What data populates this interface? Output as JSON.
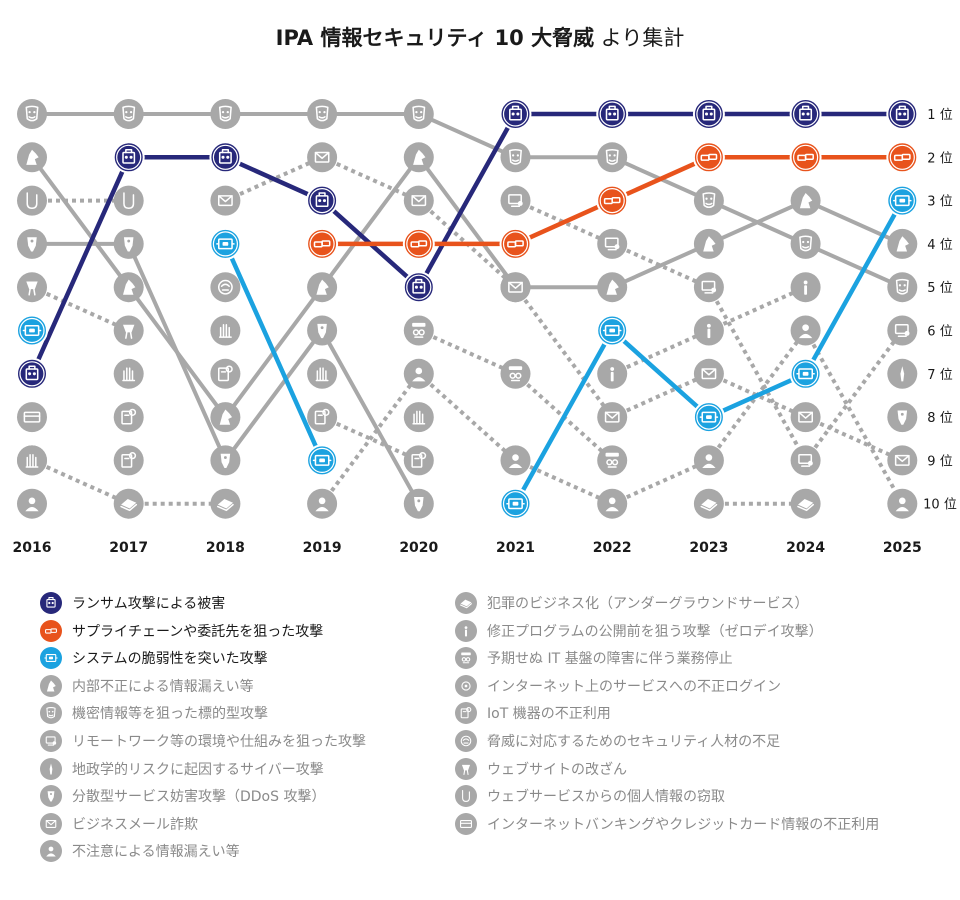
{
  "title": {
    "bold": "IPA 情報セキュリティ 10 大脅威",
    "normal": "より集計"
  },
  "chart_data": {
    "type": "bump",
    "title": "IPA 情報セキュリティ 10 大脅威 より集計",
    "x": [
      "2016",
      "2017",
      "2018",
      "2019",
      "2020",
      "2021",
      "2022",
      "2023",
      "2024",
      "2025"
    ],
    "rank_labels": [
      "1 位",
      "2 位",
      "3 位",
      "4 位",
      "5 位",
      "6 位",
      "7 位",
      "8 位",
      "9 位",
      "10 位"
    ],
    "series": [
      {
        "name": "ランサム攻撃による被害",
        "key": "ransom",
        "ranks": [
          7,
          2,
          2,
          3,
          5,
          1,
          1,
          1,
          1,
          1
        ],
        "color": "#27287a",
        "style": "highlight",
        "icon": "skull-lock-icon",
        "legend_col": 0
      },
      {
        "name": "サプライチェーンや委託先を狙った攻撃",
        "key": "supply",
        "ranks": [
          null,
          null,
          null,
          4,
          4,
          4,
          3,
          2,
          2,
          2
        ],
        "color": "#e8531c",
        "style": "highlight",
        "icon": "chain-link-icon",
        "legend_col": 0
      },
      {
        "name": "システムの脆弱性を突いた攻撃",
        "key": "vuln",
        "ranks": [
          6,
          null,
          4,
          9,
          null,
          10,
          6,
          8,
          7,
          3
        ],
        "color": "#1ba2e0",
        "style": "highlight",
        "icon": "bug-icon",
        "legend_col": 0
      },
      {
        "name": "内部不正による情報漏えい等",
        "key": "insider",
        "ranks": [
          2,
          5,
          8,
          5,
          2,
          5,
          5,
          4,
          3,
          4
        ],
        "color": "#a8a8a8",
        "style": "solid",
        "icon": "insider-icon",
        "legend_col": 0
      },
      {
        "name": "機密情報等を狙った標的型攻撃",
        "key": "apt",
        "ranks": [
          1,
          1,
          1,
          1,
          1,
          2,
          2,
          3,
          4,
          5
        ],
        "color": "#a8a8a8",
        "style": "solid",
        "icon": "mask-icon",
        "legend_col": 0
      },
      {
        "name": "リモートワーク等の環境や仕組みを狙った攻撃",
        "key": "remote",
        "ranks": [
          null,
          null,
          null,
          null,
          null,
          3,
          4,
          5,
          9,
          6
        ],
        "color": "#a8a8a8",
        "style": "dotted",
        "icon": "remote-work-icon",
        "legend_col": 0
      },
      {
        "name": "地政学的リスクに起因するサイバー攻撃",
        "key": "geo",
        "ranks": [
          null,
          null,
          null,
          null,
          null,
          null,
          null,
          null,
          null,
          7
        ],
        "color": "#a8a8a8",
        "style": "dotted",
        "icon": "geo-risk-icon",
        "legend_col": 0
      },
      {
        "name": "分散型サービス妨害攻撃（DDoS 攻撃）",
        "key": "ddos",
        "ranks": [
          4,
          4,
          9,
          6,
          10,
          null,
          null,
          null,
          null,
          8
        ],
        "color": "#a8a8a8",
        "style": "solid",
        "icon": "ddos-icon",
        "legend_col": 0
      },
      {
        "name": "ビジネスメール詐欺",
        "key": "bec",
        "ranks": [
          null,
          null,
          3,
          2,
          3,
          5,
          8,
          7,
          8,
          9
        ],
        "color": "#a8a8a8",
        "style": "dotted",
        "icon": "mail-icon",
        "legend_col": 0
      },
      {
        "name": "不注意による情報漏えい等",
        "key": "careless",
        "ranks": [
          10,
          null,
          null,
          10,
          7,
          9,
          10,
          9,
          6,
          10
        ],
        "color": "#a8a8a8",
        "style": "dotted",
        "icon": "person-icon",
        "legend_col": 0
      },
      {
        "name": "犯罪のビジネス化（アンダーグラウンドサービス）",
        "key": "crime",
        "ranks": [
          9,
          10,
          10,
          null,
          null,
          null,
          null,
          10,
          10,
          null
        ],
        "color": "#a8a8a8",
        "style": "dotted",
        "icon": "cash-icon",
        "legend_col": 1
      },
      {
        "name": "修正プログラムの公開前を狙う攻撃（ゼロデイ攻撃）",
        "key": "zeroday",
        "ranks": [
          null,
          null,
          null,
          null,
          null,
          null,
          7,
          6,
          5,
          null
        ],
        "color": "#a8a8a8",
        "style": "dotted",
        "icon": "zero-day-icon",
        "legend_col": 1
      },
      {
        "name": "予期せぬ IT 基盤の障害に伴う業務停止",
        "key": "outage",
        "ranks": [
          null,
          null,
          null,
          null,
          6,
          7,
          9,
          null,
          null,
          null
        ],
        "color": "#a8a8a8",
        "style": "dotted",
        "icon": "outage-icon",
        "legend_col": 1
      },
      {
        "name": "インターネット上のサービスへの不正ログイン",
        "key": "login",
        "ranks": [
          null,
          null,
          null,
          null,
          null,
          null,
          null,
          null,
          null,
          null
        ],
        "color": "#a8a8a8",
        "style": "dotted",
        "icon": "login-icon",
        "legend_col": 1
      },
      {
        "name": "IoT 機器の不正利用",
        "key": "iot",
        "ranks": [
          null,
          9,
          null,
          8,
          9,
          null,
          null,
          null,
          null,
          null
        ],
        "color": "#a8a8a8",
        "style": "dotted",
        "icon": "iot-icon",
        "legend_col": 1
      },
      {
        "name": "脅威に対応するためのセキュリティ人材の不足",
        "key": "talent",
        "ranks": [
          null,
          null,
          null,
          null,
          null,
          null,
          null,
          null,
          null,
          null
        ],
        "color": "#a8a8a8",
        "style": "dotted",
        "icon": "talent-icon",
        "legend_col": 1
      },
      {
        "name": "ウェブサイトの改ざん",
        "key": "deface",
        "ranks": [
          5,
          6,
          null,
          null,
          null,
          null,
          null,
          null,
          null,
          null
        ],
        "color": "#a8a8a8",
        "style": "dotted",
        "icon": "deface-icon",
        "legend_col": 1
      },
      {
        "name": "ウェブサービスからの個人情報の窃取",
        "key": "theft",
        "ranks": [
          3,
          3,
          null,
          null,
          null,
          null,
          null,
          null,
          null,
          null
        ],
        "color": "#a8a8a8",
        "style": "dotted",
        "icon": "theft-icon",
        "legend_col": 1
      },
      {
        "name": "インターネットバンキングやクレジットカード情報の不正利用",
        "key": "banking",
        "ranks": [
          8,
          null,
          null,
          null,
          null,
          null,
          null,
          null,
          null,
          null
        ],
        "color": "#a8a8a8",
        "style": "dotted",
        "icon": "banking-icon",
        "legend_col": 1
      }
    ],
    "extra_marks": [
      {
        "year": "2017",
        "rank": 7,
        "icon": "hand-icon"
      },
      {
        "year": "2017",
        "rank": 8,
        "icon": "iot-icon"
      },
      {
        "year": "2018",
        "rank": 5,
        "icon": "talent-icon"
      },
      {
        "year": "2018",
        "rank": 6,
        "icon": "hand-icon"
      },
      {
        "year": "2018",
        "rank": 7,
        "icon": "iot-icon"
      },
      {
        "year": "2019",
        "rank": 7,
        "icon": "hand-icon"
      },
      {
        "year": "2020",
        "rank": 8,
        "icon": "hand-icon"
      },
      {
        "year": "2016",
        "rank": 9,
        "icon": "hand-icon"
      }
    ]
  }
}
